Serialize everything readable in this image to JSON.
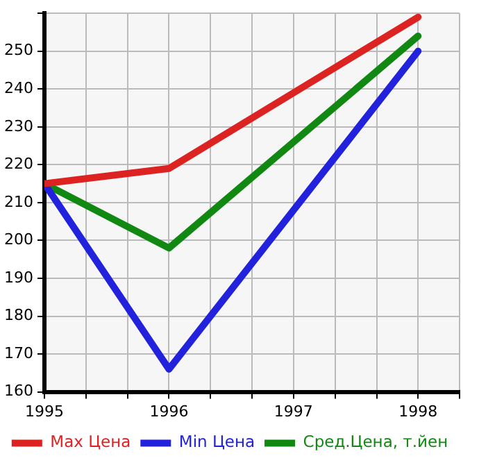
{
  "chart_data": {
    "type": "line",
    "x": [
      1995,
      1996,
      1998
    ],
    "series": [
      {
        "name": "Max Цена",
        "color": "#dd2222",
        "values": [
          215,
          219,
          259
        ]
      },
      {
        "name": "Min Цена",
        "color": "#2222dd",
        "values": [
          215,
          166,
          250
        ]
      },
      {
        "name": "Сред.Цена, т.йен",
        "color": "#118811",
        "values": [
          215,
          198,
          254
        ]
      }
    ],
    "xlim": [
      1995,
      1998.333
    ],
    "xticks": [
      1995,
      {
        "value": 1995.333,
        "label": null
      },
      {
        "value": 1995.667,
        "label": null
      },
      1996,
      {
        "value": 1996.333,
        "label": null
      },
      {
        "value": 1996.667,
        "label": null
      },
      1997,
      {
        "value": 1997.333,
        "label": null
      },
      {
        "value": 1997.667,
        "label": null
      },
      1998,
      {
        "value": 1998.333,
        "label": null
      }
    ],
    "ylim": [
      160,
      260
    ],
    "yticks": [
      160,
      170,
      180,
      190,
      200,
      210,
      220,
      230,
      240,
      250,
      {
        "value": 260,
        "label": null
      }
    ],
    "grid": true,
    "legend": "bottom",
    "marker": "none",
    "line_style": "solid"
  }
}
